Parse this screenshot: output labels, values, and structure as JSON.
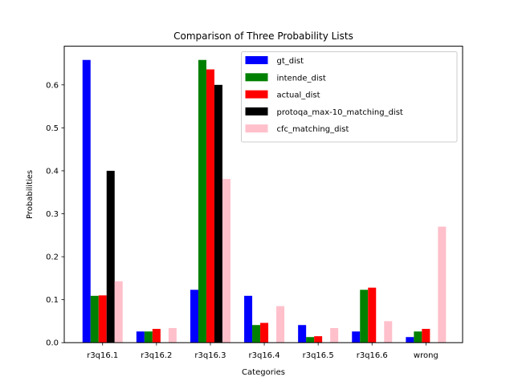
{
  "chart_data": {
    "type": "bar",
    "title": "Comparison of Three Probability Lists",
    "xlabel": "Categories",
    "ylabel": "Probabilities",
    "categories": [
      "r3q16.1",
      "r3q16.2",
      "r3q16.3",
      "r3q16.4",
      "r3q16.5",
      "r3q16.6",
      "wrong"
    ],
    "ylim": [
      0,
      0.69
    ],
    "yticks": [
      0.0,
      0.1,
      0.2,
      0.3,
      0.4,
      0.5,
      0.6
    ],
    "ytick_labels": [
      "0.0",
      "0.1",
      "0.2",
      "0.3",
      "0.4",
      "0.5",
      "0.6"
    ],
    "grid": false,
    "legend_position": "top-right",
    "series": [
      {
        "name": "gt_dist",
        "color": "#0000ff",
        "values": [
          0.658,
          0.026,
          0.123,
          0.109,
          0.041,
          0.026,
          0.013
        ]
      },
      {
        "name": "intende_dist",
        "color": "#008000",
        "values": [
          0.109,
          0.026,
          0.658,
          0.041,
          0.013,
          0.123,
          0.026
        ]
      },
      {
        "name": "actual_dist",
        "color": "#ff0000",
        "values": [
          0.11,
          0.032,
          0.636,
          0.046,
          0.015,
          0.128,
          0.032
        ]
      },
      {
        "name": "protoqa_max-10_matching_dist",
        "color": "#000000",
        "values": [
          0.4,
          0.0,
          0.6,
          0.0,
          0.0,
          0.0,
          0.0
        ]
      },
      {
        "name": "cfc_matching_dist",
        "color": "#ffc0cb",
        "values": [
          0.143,
          0.034,
          0.381,
          0.085,
          0.034,
          0.05,
          0.27
        ]
      }
    ]
  }
}
